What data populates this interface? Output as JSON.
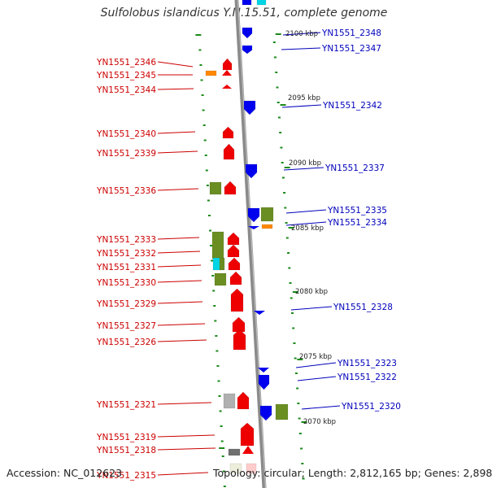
{
  "title": "Sulfolobus islandicus Y.N.15.51, complete genome",
  "footer": {
    "accession": "Accession: NC_012623",
    "topology": "Topology: circular; Length: 2,812,165 bp; Genes: 2,898"
  },
  "colors": {
    "forward_strand": "#ee0000",
    "reverse_strand": "#0000ee",
    "rna": "#ff8800",
    "other_olive": "#6b8e23",
    "other_cyan": "#00d5e5",
    "other_gray": "#b0b0b0",
    "backbone": "#8a8a8a",
    "tick": "#1a8a1a",
    "left_label": "#cc0000",
    "right_label": "#0000bb"
  },
  "kbp_labels": [
    {
      "text": "2100 kbp"
    },
    {
      "text": "2095 kbp"
    },
    {
      "text": "2090 kbp"
    },
    {
      "text": "2085 kbp"
    },
    {
      "text": "2080 kbp"
    },
    {
      "text": "2075 kbp"
    },
    {
      "text": "2070 kbp"
    }
  ],
  "left_genes": [
    {
      "label": "YN1551_2346"
    },
    {
      "label": "YN1551_2345"
    },
    {
      "label": "YN1551_2344"
    },
    {
      "label": "YN1551_2340"
    },
    {
      "label": "YN1551_2339"
    },
    {
      "label": "YN1551_2336"
    },
    {
      "label": "YN1551_2333"
    },
    {
      "label": "YN1551_2332"
    },
    {
      "label": "YN1551_2331"
    },
    {
      "label": "YN1551_2330"
    },
    {
      "label": "YN1551_2329"
    },
    {
      "label": "YN1551_2327"
    },
    {
      "label": "YN1551_2326"
    },
    {
      "label": "YN1551_2321"
    },
    {
      "label": "YN1551_2319"
    },
    {
      "label": "YN1551_2318"
    },
    {
      "label": "YN1551_2315"
    }
  ],
  "right_genes": [
    {
      "label": "YN1551_2348"
    },
    {
      "label": "YN1551_2347"
    },
    {
      "label": "YN1551_2342"
    },
    {
      "label": "YN1551_2337"
    },
    {
      "label": "YN1551_2335"
    },
    {
      "label": "YN1551_2334"
    },
    {
      "label": "YN1551_2328"
    },
    {
      "label": "YN1551_2323"
    },
    {
      "label": "YN1551_2322"
    },
    {
      "label": "YN1551_2320"
    }
  ]
}
